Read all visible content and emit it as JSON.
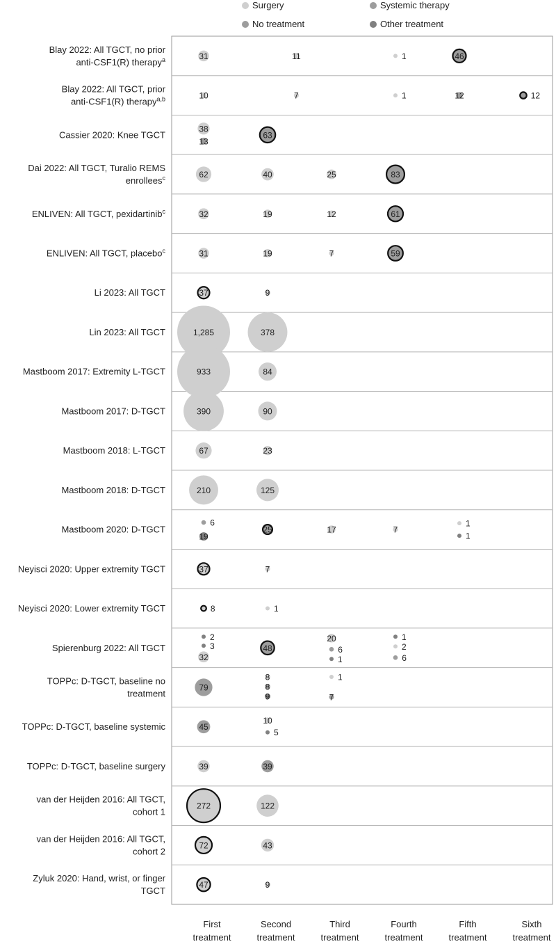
{
  "legend": [
    {
      "label": "Surgery",
      "color": "#cfcfcf"
    },
    {
      "label": "Systemic therapy",
      "color": "#9d9d9d"
    },
    {
      "label": "No treatment",
      "color": "#9d9d9d"
    },
    {
      "label": "Other treatment",
      "color": "#808080"
    }
  ],
  "chart_data": {
    "type": "bubble",
    "categories": [
      "First\ntreatment",
      "Second\ntreatment",
      "Third\ntreatment",
      "Fourth\ntreatment",
      "Fifth\ntreatment",
      "Sixth\ntreatment"
    ],
    "rows": [
      {
        "label": "Blay 2022: All TGCT, no prior anti-CSF1(R) therapy|a",
        "bubbles": [
          {
            "col": 0,
            "value": "31",
            "type": "surgery"
          },
          {
            "col": 1.45,
            "value": "11",
            "type": "surgery"
          },
          {
            "col": 3,
            "value": "1",
            "type": "surgery",
            "label_outside": true
          },
          {
            "col": 4,
            "value": "46",
            "type": "systemic",
            "ring": true
          }
        ]
      },
      {
        "label": "Blay 2022: All TGCT, prior anti-CSF1(R) therapy|a,b",
        "bubbles": [
          {
            "col": 0,
            "value": "10",
            "type": "surgery"
          },
          {
            "col": 1.45,
            "value": "7",
            "type": "surgery"
          },
          {
            "col": 3,
            "value": "1",
            "type": "surgery",
            "label_outside": true
          },
          {
            "col": 4,
            "value": "12",
            "type": "systemic"
          },
          {
            "col": 5,
            "value": "12",
            "type": "systemic",
            "ring": true,
            "label_outside": true
          }
        ]
      },
      {
        "label": "Cassier 2020: Knee TGCT",
        "bubbles": [
          {
            "col": 0,
            "value": "38",
            "type": "surgery",
            "dy": -9
          },
          {
            "col": 0,
            "value": "13",
            "type": "systemic",
            "dy": 9
          },
          {
            "col": 1,
            "value": "63",
            "type": "systemic",
            "ring": true
          }
        ]
      },
      {
        "label": "Dai 2022: All TGCT, Turalio REMS enrollees|c",
        "bubbles": [
          {
            "col": 0,
            "value": "62",
            "type": "surgery"
          },
          {
            "col": 1,
            "value": "40",
            "type": "surgery"
          },
          {
            "col": 2,
            "value": "25",
            "type": "surgery"
          },
          {
            "col": 3,
            "value": "83",
            "type": "systemic",
            "ring": true
          }
        ]
      },
      {
        "label": "ENLIVEN: All TGCT, pexidartinib|c",
        "bubbles": [
          {
            "col": 0,
            "value": "32",
            "type": "surgery"
          },
          {
            "col": 1,
            "value": "19",
            "type": "surgery"
          },
          {
            "col": 2,
            "value": "12",
            "type": "surgery"
          },
          {
            "col": 3,
            "value": "61",
            "type": "systemic",
            "ring": true
          }
        ]
      },
      {
        "label": "ENLIVEN: All TGCT, placebo|c",
        "bubbles": [
          {
            "col": 0,
            "value": "31",
            "type": "surgery"
          },
          {
            "col": 1,
            "value": "19",
            "type": "surgery"
          },
          {
            "col": 2,
            "value": "7",
            "type": "surgery"
          },
          {
            "col": 3,
            "value": "59",
            "type": "systemic",
            "ring": true
          }
        ]
      },
      {
        "label": "Li 2023: All TGCT",
        "bubbles": [
          {
            "col": 0,
            "value": "37",
            "type": "surgery",
            "ring": true
          },
          {
            "col": 1,
            "value": "9",
            "type": "surgery"
          }
        ]
      },
      {
        "label": "Lin 2023: All TGCT",
        "bubbles": [
          {
            "col": 0,
            "value": "1,285",
            "type": "surgery"
          },
          {
            "col": 1,
            "value": "378",
            "type": "surgery"
          }
        ]
      },
      {
        "label": "Mastboom 2017: Extremity L-TGCT",
        "bubbles": [
          {
            "col": 0,
            "value": "933",
            "type": "surgery"
          },
          {
            "col": 1,
            "value": "84",
            "type": "surgery"
          }
        ]
      },
      {
        "label": "Mastboom 2017: D-TGCT",
        "bubbles": [
          {
            "col": 0,
            "value": "390",
            "type": "surgery"
          },
          {
            "col": 1,
            "value": "90",
            "type": "surgery"
          }
        ]
      },
      {
        "label": "Mastboom 2018: L-TGCT",
        "bubbles": [
          {
            "col": 0,
            "value": "67",
            "type": "surgery"
          },
          {
            "col": 1,
            "value": "23",
            "type": "surgery"
          }
        ]
      },
      {
        "label": "Mastboom 2018: D-TGCT",
        "bubbles": [
          {
            "col": 0,
            "value": "210",
            "type": "surgery"
          },
          {
            "col": 1,
            "value": "125",
            "type": "surgery"
          }
        ]
      },
      {
        "label": "Mastboom 2020: D-TGCT",
        "bubbles": [
          {
            "col": 0,
            "value": "6",
            "type": "systemic",
            "dy": -10,
            "label_outside": true
          },
          {
            "col": 0,
            "value": "19",
            "type": "other",
            "dy": 10
          },
          {
            "col": 1,
            "value": "25",
            "type": "systemic",
            "ring": true
          },
          {
            "col": 2,
            "value": "17",
            "type": "surgery"
          },
          {
            "col": 3,
            "value": "7",
            "type": "surgery"
          },
          {
            "col": 4,
            "value": "1",
            "type": "surgery",
            "dy": -9,
            "label_outside": true
          },
          {
            "col": 4,
            "value": "1",
            "type": "other",
            "dy": 9,
            "label_outside": true
          }
        ]
      },
      {
        "label": "Neyisci 2020: Upper extremity TGCT",
        "bubbles": [
          {
            "col": 0,
            "value": "37",
            "type": "surgery",
            "ring": true
          },
          {
            "col": 1,
            "value": "7",
            "type": "surgery"
          }
        ]
      },
      {
        "label": "Neyisci 2020: Lower extremity TGCT",
        "bubbles": [
          {
            "col": 0,
            "value": "8",
            "type": "surgery",
            "ring": true,
            "label_outside": true
          },
          {
            "col": 1,
            "value": "1",
            "type": "surgery",
            "label_outside": true
          }
        ]
      },
      {
        "label": "Spierenburg 2022: All TGCT",
        "bubbles": [
          {
            "col": 0,
            "value": "2",
            "type": "other",
            "dy": -16,
            "label_outside": true
          },
          {
            "col": 0,
            "value": "3",
            "type": "other",
            "dy": -3,
            "label_outside": true
          },
          {
            "col": 0,
            "value": "32",
            "type": "surgery",
            "dy": 13
          },
          {
            "col": 1,
            "value": "48",
            "type": "systemic",
            "ring": true
          },
          {
            "col": 2,
            "value": "20",
            "type": "surgery",
            "dy": -14
          },
          {
            "col": 2,
            "value": "6",
            "type": "systemic",
            "dy": 2,
            "label_outside": true
          },
          {
            "col": 2,
            "value": "1",
            "type": "other",
            "dy": 16,
            "label_outside": true
          },
          {
            "col": 3,
            "value": "1",
            "type": "other",
            "dy": -16,
            "label_outside": true
          },
          {
            "col": 3,
            "value": "2",
            "type": "surgery",
            "dy": -2,
            "label_outside": true
          },
          {
            "col": 3,
            "value": "6",
            "type": "systemic",
            "dy": 14,
            "label_outside": true
          }
        ]
      },
      {
        "label": "TOPPc: D-TGCT, baseline no treatment",
        "bubbles": [
          {
            "col": 0,
            "value": "79",
            "type": "systemic"
          },
          {
            "col": 1,
            "value": "8",
            "type": "surgery",
            "dy": -15
          },
          {
            "col": 1,
            "value": "8",
            "type": "systemic",
            "dy": -1
          },
          {
            "col": 1,
            "value": "9",
            "type": "other",
            "dy": 13
          },
          {
            "col": 2,
            "value": "1",
            "type": "surgery",
            "dy": -15,
            "label_outside": true
          },
          {
            "col": 2,
            "value": "7",
            "type": "systemic",
            "dy": 14
          }
        ]
      },
      {
        "label": "TOPPc: D-TGCT, baseline systemic",
        "bubbles": [
          {
            "col": 0,
            "value": "45",
            "type": "systemic"
          },
          {
            "col": 1,
            "value": "10",
            "type": "surgery",
            "dy": -9
          },
          {
            "col": 1,
            "value": "5",
            "type": "other",
            "dy": 8,
            "label_outside": true
          }
        ]
      },
      {
        "label": "TOPPc: D-TGCT, baseline surgery",
        "bubbles": [
          {
            "col": 0,
            "value": "39",
            "type": "surgery"
          },
          {
            "col": 1,
            "value": "39",
            "type": "systemic"
          }
        ]
      },
      {
        "label": "van der Heijden 2016: All TGCT, cohort 1",
        "bubbles": [
          {
            "col": 0,
            "value": "272",
            "type": "surgery",
            "ring": true
          },
          {
            "col": 1,
            "value": "122",
            "type": "surgery"
          }
        ]
      },
      {
        "label": "van der Heijden 2016: All TGCT, cohort 2",
        "bubbles": [
          {
            "col": 0,
            "value": "72",
            "type": "surgery",
            "ring": true
          },
          {
            "col": 1,
            "value": "43",
            "type": "surgery"
          }
        ]
      },
      {
        "label": "Zyluk 2020: Hand, wrist, or finger TGCT",
        "bubbles": [
          {
            "col": 0,
            "value": "47",
            "type": "surgery",
            "ring": true
          },
          {
            "col": 1,
            "value": "9",
            "type": "surgery"
          }
        ]
      }
    ]
  }
}
